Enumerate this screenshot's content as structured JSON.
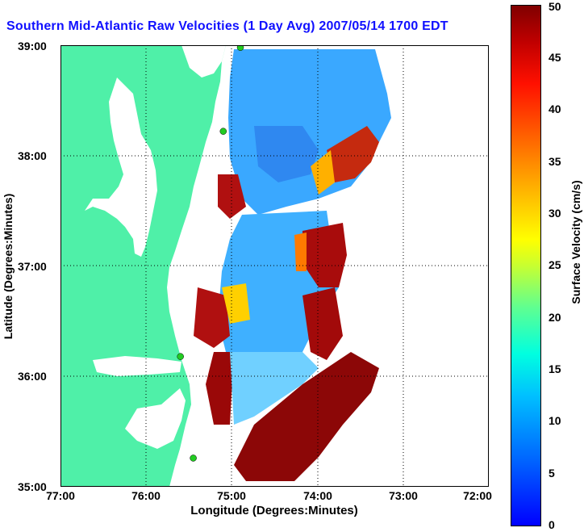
{
  "title": "Southern Mid-Atlantic Raw Velocities (1 Day Avg) 2007/05/14 1700 EDT",
  "axes": {
    "xlabel": "Longitude (Degrees:Minutes)",
    "ylabel": "Latitude (Degrees:Minutes)",
    "x_ticks": [
      "77:00",
      "76:00",
      "75:00",
      "74:00",
      "73:00",
      "72:00"
    ],
    "y_ticks": [
      "39:00",
      "38:00",
      "37:00",
      "36:00",
      "35:00"
    ]
  },
  "colorbar": {
    "title": "Surface Velocity (cm/s)",
    "ticks": [
      "50",
      "45",
      "40",
      "35",
      "30",
      "25",
      "20",
      "15",
      "10",
      "5",
      "0"
    ],
    "colormap": "jet"
  },
  "colors": {
    "land": "#4ff0a8",
    "grid": "#000000",
    "title": "#1010ff",
    "station": "#22cc22"
  },
  "map": {
    "lon_range": [
      -77,
      -72
    ],
    "lat_range": [
      35,
      39
    ],
    "stations": [
      {
        "lon": -74.9,
        "lat": 38.98
      },
      {
        "lon": -75.1,
        "lat": 38.22
      },
      {
        "lon": -75.6,
        "lat": 36.18
      },
      {
        "lon": -75.45,
        "lat": 35.26
      }
    ]
  }
}
